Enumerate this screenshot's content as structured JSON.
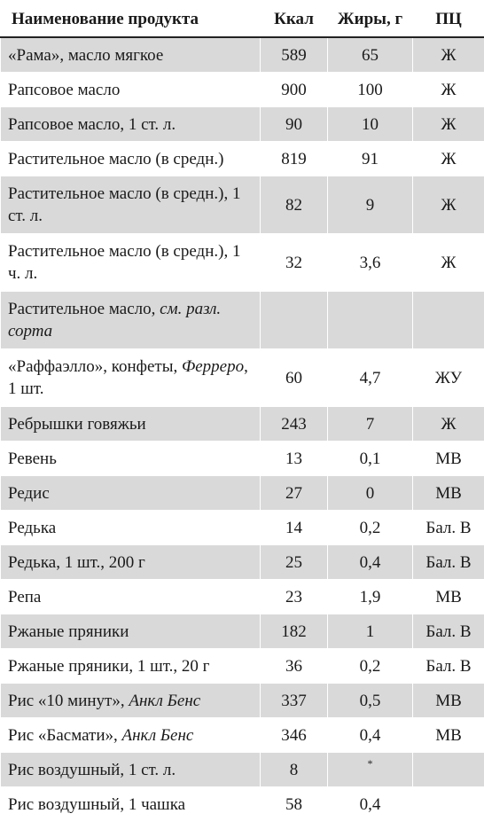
{
  "header": {
    "name": "Наименование продукта",
    "kcal": "Ккал",
    "fat": "Жиры, г",
    "pc": "ПЦ"
  },
  "rows": [
    {
      "name": "«Рама», масло мягкое",
      "kcal": "589",
      "fat": "65",
      "pc": "Ж"
    },
    {
      "name": "Рапсовое масло",
      "kcal": "900",
      "fat": "100",
      "pc": "Ж"
    },
    {
      "name": "Рапсовое масло, 1 ст. л.",
      "kcal": "90",
      "fat": "10",
      "pc": "Ж"
    },
    {
      "name": "Растительное масло (в средн.)",
      "kcal": "819",
      "fat": "91",
      "pc": "Ж"
    },
    {
      "name": "Растительное масло (в средн.), 1 ст. л.",
      "kcal": "82",
      "fat": "9",
      "pc": "Ж"
    },
    {
      "name": "Растительное масло (в средн.), 1 ч. л.",
      "kcal": "32",
      "fat": "3,6",
      "pc": "Ж"
    },
    {
      "name": "Растительное масло, ",
      "name_italic": "см. разл. сорта",
      "kcal": "",
      "fat": "",
      "pc": ""
    },
    {
      "name": "«Раффаэлло», конфеты, ",
      "name_italic": "Ферреро",
      "name_suffix": ", 1 шт.",
      "kcal": "60",
      "fat": "4,7",
      "pc": "ЖУ"
    },
    {
      "name": "Ребрышки говяжьи",
      "kcal": "243",
      "fat": "7",
      "pc": "Ж"
    },
    {
      "name": "Ревень",
      "kcal": "13",
      "fat": "0,1",
      "pc": "МВ"
    },
    {
      "name": "Редис",
      "kcal": "27",
      "fat": "0",
      "pc": "МВ"
    },
    {
      "name": "Редька",
      "kcal": "14",
      "fat": "0,2",
      "pc": "Бал. В"
    },
    {
      "name": "Редька, 1 шт., 200 г",
      "kcal": "25",
      "fat": "0,4",
      "pc": "Бал. В"
    },
    {
      "name": "Репа",
      "kcal": "23",
      "fat": "1,9",
      "pc": "МВ"
    },
    {
      "name": "Ржаные пряники",
      "kcal": "182",
      "fat": "1",
      "pc": "Бал. В"
    },
    {
      "name": "Ржаные пряники, 1 шт., 20 г",
      "kcal": "36",
      "fat": "0,2",
      "pc": "Бал. В"
    },
    {
      "name": "Рис «10 минут», ",
      "name_italic": "Анкл Бенс",
      "kcal": "337",
      "fat": "0,5",
      "pc": "МВ"
    },
    {
      "name": "Рис «Басмати», ",
      "name_italic": "Анкл Бенс",
      "kcal": "346",
      "fat": "0,4",
      "pc": "МВ"
    },
    {
      "name": "Рис воздушный, 1 ст. л.",
      "kcal": "8",
      "fat": "*",
      "pc": ""
    },
    {
      "name": "Рис воздушный, 1 чашка",
      "kcal": "58",
      "fat": "0,4",
      "pc": ""
    }
  ]
}
